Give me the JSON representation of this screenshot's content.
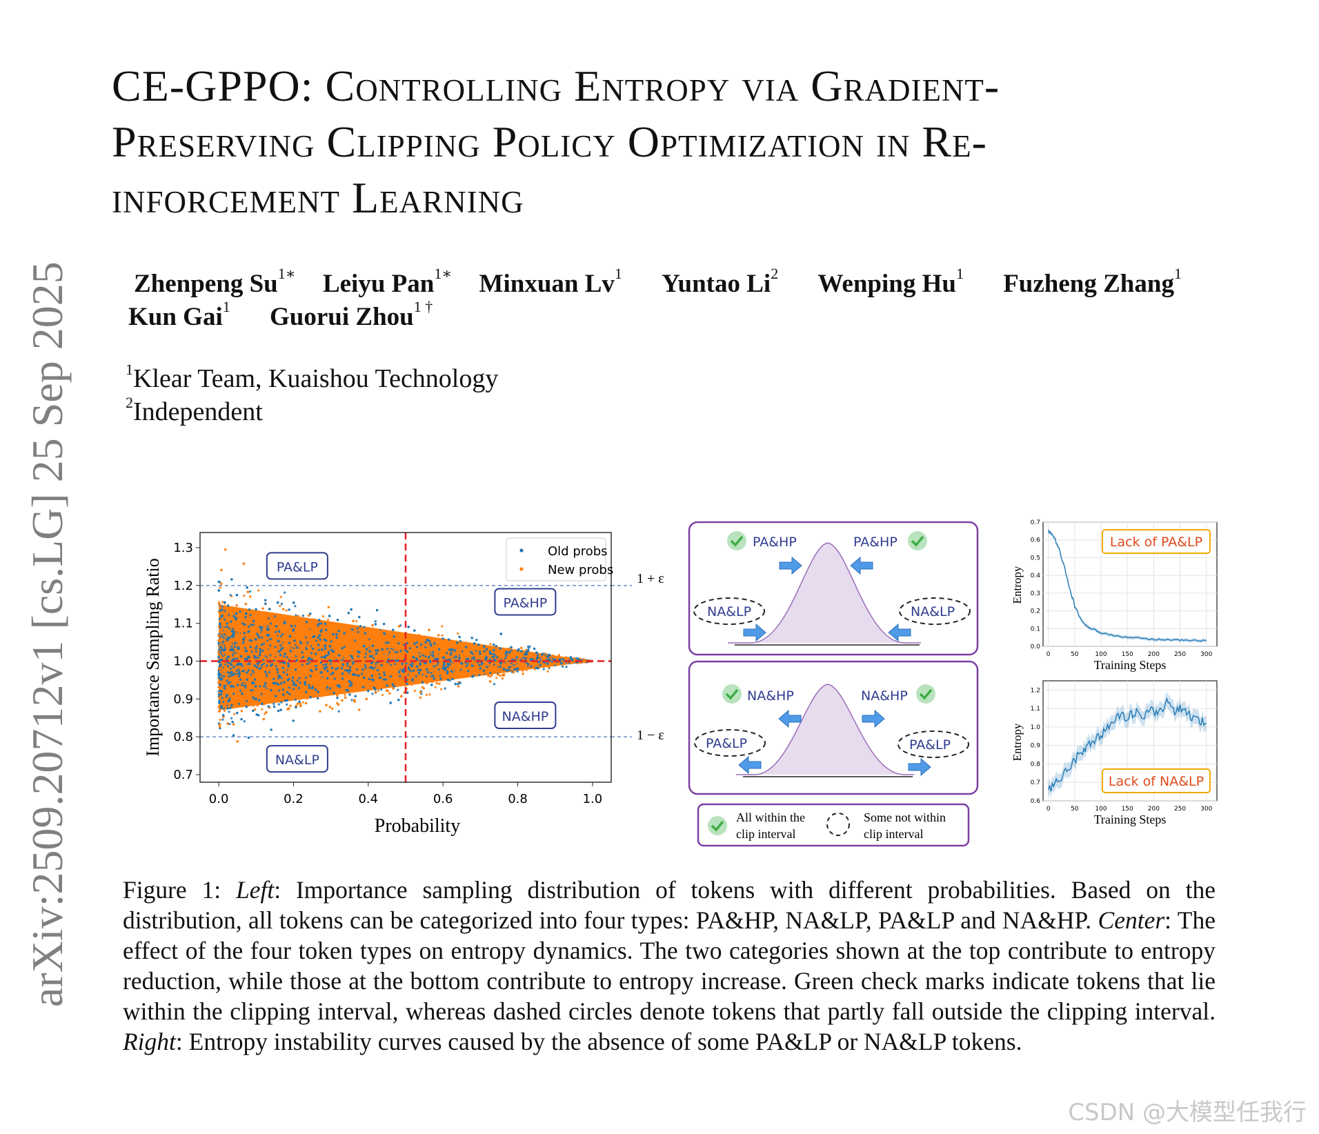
{
  "arxiv_stamp": "arXiv:2509.20712v1  [cs.LG]  25 Sep 2025",
  "title": {
    "line1": "CE-GPPO: Controlling Entropy via Gradient-",
    "line2": "Preserving Clipping Policy Optimization in Re-",
    "line3": "inforcement Learning"
  },
  "authors": [
    {
      "name": "Zhenpeng Su",
      "sup": "1∗"
    },
    {
      "name": "Leiyu Pan",
      "sup": "1∗"
    },
    {
      "name": "Minxuan Lv",
      "sup": "1"
    },
    {
      "name": "Yuntao Li",
      "sup": "2"
    },
    {
      "name": "Wenping Hu",
      "sup": "1"
    },
    {
      "name": "Fuzheng Zhang",
      "sup": "1"
    },
    {
      "name": "Kun Gai",
      "sup": "1"
    },
    {
      "name": "Guorui Zhou",
      "sup": "1 †"
    }
  ],
  "affiliations": [
    {
      "sup": "1",
      "text": "Klear Team, Kuaishou Technology"
    },
    {
      "sup": "2",
      "text": "Independent"
    }
  ],
  "figure_left": {
    "chart_data": {
      "type": "scatter",
      "xlabel": "Probability",
      "ylabel": "Importance Sampling Ratio",
      "xlim": [
        -0.05,
        1.05
      ],
      "ylim": [
        0.68,
        1.34
      ],
      "xticks": [
        "0.0",
        "0.2",
        "0.4",
        "0.6",
        "0.8",
        "1.0"
      ],
      "yticks": [
        "0.7",
        "0.8",
        "0.9",
        "1.0",
        "1.1",
        "1.2",
        "1.3"
      ],
      "series": [
        {
          "name": "Old probs",
          "color": "#1f77b4"
        },
        {
          "name": "New probs",
          "color": "#ff7f0e"
        }
      ],
      "legend_placement": "top-right",
      "reference_lines": [
        {
          "axis": "y",
          "value": 1.2,
          "label": "1 + ε",
          "style": "dashed",
          "color": "#5b7fbf"
        },
        {
          "axis": "y",
          "value": 0.8,
          "label": "1 − ε",
          "style": "dashed",
          "color": "#5b7fbf"
        },
        {
          "axis": "y",
          "value": 1.0,
          "style": "dashed",
          "color": "#e8222a"
        },
        {
          "axis": "x",
          "value": 0.5,
          "style": "dashed",
          "color": "#e8222a"
        }
      ],
      "region_labels": [
        {
          "text": "PA&LP",
          "x": 0.21,
          "y": 1.25
        },
        {
          "text": "PA&HP",
          "x": 0.82,
          "y": 1.155
        },
        {
          "text": "NA&HP",
          "x": 0.82,
          "y": 0.855
        },
        {
          "text": "NA&LP",
          "x": 0.21,
          "y": 0.74
        }
      ],
      "envelope": {
        "x0": 0.0,
        "upper_at_x0": 1.15,
        "lower_at_x0": 0.87,
        "converge_x": 1.0,
        "converge_y": 1.0
      }
    }
  },
  "figure_center": {
    "top_panel": {
      "labels": [
        "PA&HP",
        "PA&HP",
        "NA&LP",
        "NA&LP"
      ]
    },
    "bottom_panel": {
      "labels": [
        "NA&HP",
        "NA&HP",
        "PA&LP",
        "PA&LP"
      ]
    },
    "legend": {
      "check_label_line1": "All within the",
      "check_label_line2": "clip interval",
      "dashed_label_line1": "Some not within",
      "dashed_label_line2": "clip interval"
    },
    "accent_color": "#7b3fa1",
    "check_color": "#3fae49",
    "arrow_color": "#4f9be8"
  },
  "figure_right": {
    "chart_data": [
      {
        "type": "line",
        "xlabel": "Training Steps",
        "ylabel": "Entropy",
        "annotation": "Lack of PA&LP",
        "xlim": [
          -10,
          320
        ],
        "ylim": [
          0.0,
          0.7
        ],
        "xticks": [
          "0",
          "50",
          "100",
          "150",
          "200",
          "250",
          "300"
        ],
        "yticks": [
          "0.0",
          "0.1",
          "0.2",
          "0.3",
          "0.4",
          "0.5",
          "0.6",
          "0.7"
        ],
        "x": [
          0,
          10,
          20,
          30,
          40,
          50,
          60,
          70,
          80,
          90,
          100,
          120,
          140,
          160,
          180,
          200,
          220,
          240,
          260,
          280,
          300
        ],
        "y": [
          0.65,
          0.62,
          0.55,
          0.45,
          0.33,
          0.23,
          0.16,
          0.12,
          0.1,
          0.09,
          0.075,
          0.065,
          0.055,
          0.05,
          0.045,
          0.04,
          0.038,
          0.036,
          0.034,
          0.033,
          0.032
        ]
      },
      {
        "type": "line",
        "xlabel": "Training Steps",
        "ylabel": "Entropy",
        "annotation": "Lack of NA&LP",
        "xlim": [
          -10,
          320
        ],
        "ylim": [
          0.6,
          1.25
        ],
        "xticks": [
          "0",
          "50",
          "100",
          "150",
          "200",
          "250",
          "300"
        ],
        "yticks": [
          "0.6",
          "0.7",
          "0.8",
          "0.9",
          "1.0",
          "1.1",
          "1.2"
        ],
        "x": [
          0,
          15,
          30,
          45,
          60,
          75,
          90,
          105,
          120,
          135,
          150,
          165,
          180,
          195,
          210,
          225,
          240,
          255,
          270,
          285,
          300
        ],
        "y": [
          0.66,
          0.7,
          0.75,
          0.8,
          0.86,
          0.9,
          0.94,
          0.97,
          1.02,
          1.06,
          1.05,
          1.08,
          1.04,
          1.1,
          1.07,
          1.14,
          1.09,
          1.1,
          1.06,
          1.04,
          1.02
        ]
      }
    ]
  },
  "caption": {
    "figure_label": "Figure 1: ",
    "left_label": "Left",
    "left_text": ": Importance sampling distribution of tokens with different probabilities. Based on the distribution, all tokens can be categorized into four types: PA&HP, NA&LP, PA&LP and NA&HP. ",
    "center_label": "Center",
    "center_text": ": The effect of the four token types on entropy dynamics.  The two categories shown at the top contribute to entropy reduction, while those at the bottom contribute to entropy increase. Green check marks indicate tokens that lie within the clipping interval, whereas dashed circles denote tokens that partly fall outside the clipping interval. ",
    "right_label": "Right",
    "right_text": ": Entropy instability curves caused by the absence of some PA&LP or NA&LP tokens."
  },
  "watermark": "CSDN @大模型任我行"
}
